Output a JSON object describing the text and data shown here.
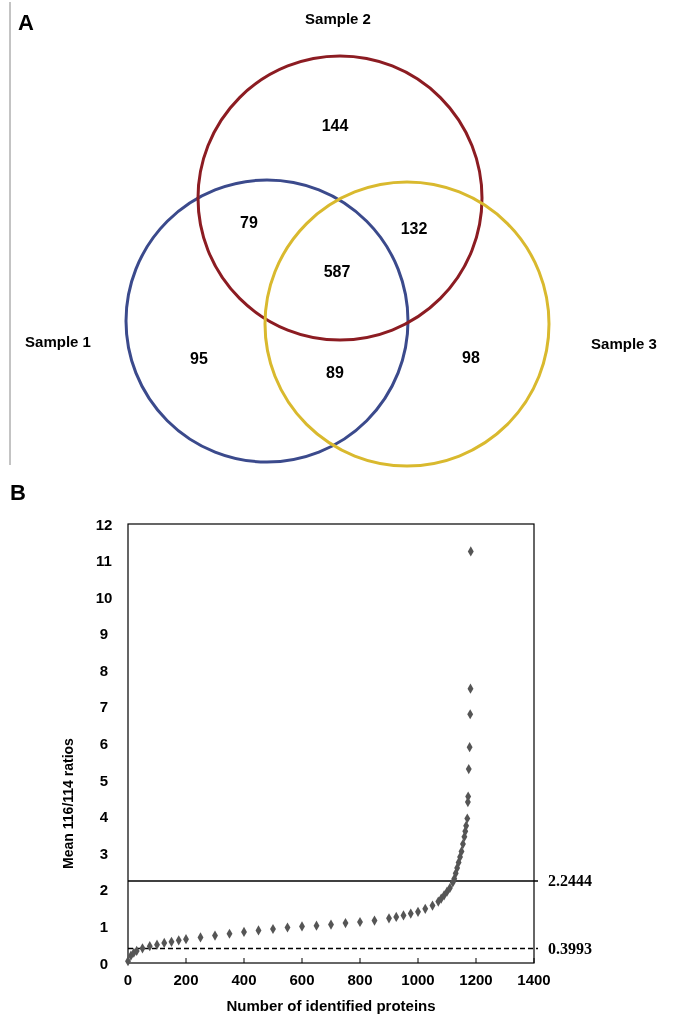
{
  "chart_data": [
    {
      "type": "other",
      "title": "A",
      "categories": [
        "Sample 1",
        "Sample 2",
        "Sample 3"
      ],
      "colors": [
        "#3b4a8c",
        "#8c1c22",
        "#d9b92e"
      ],
      "annotations": [
        "95",
        "144",
        "98",
        "79",
        "132",
        "89",
        "587"
      ]
    },
    {
      "type": "scatter",
      "title": "B",
      "xlabel": "Number of identified proteins",
      "ylabel": "Mean 116/114 ratios",
      "marker": "diamond",
      "xlim": [
        0,
        1400
      ],
      "xticks": [
        0,
        200,
        400,
        600,
        800,
        1000,
        1200,
        1400
      ],
      "ylim": [
        0,
        12
      ],
      "yticks": [
        0,
        1,
        2,
        3,
        4,
        5,
        6,
        7,
        8,
        9,
        10,
        11,
        12
      ],
      "series": [
        {
          "color": "#555555",
          "x": [
            0,
            10,
            20,
            30,
            50,
            75,
            100,
            125,
            150,
            175,
            200,
            250,
            300,
            350,
            400,
            450,
            500,
            550,
            600,
            650,
            700,
            750,
            800,
            850,
            900,
            925,
            950,
            975,
            1000,
            1025,
            1050,
            1070,
            1080,
            1090,
            1100,
            1110,
            1120,
            1125,
            1130,
            1135,
            1140,
            1145,
            1150,
            1155,
            1160,
            1163,
            1166,
            1170,
            1172,
            1173,
            1175,
            1178,
            1180,
            1181,
            1182
          ],
          "values": [
            0.05,
            0.2,
            0.28,
            0.33,
            0.4,
            0.46,
            0.5,
            0.55,
            0.58,
            0.62,
            0.65,
            0.7,
            0.75,
            0.8,
            0.85,
            0.89,
            0.93,
            0.97,
            1.0,
            1.02,
            1.05,
            1.09,
            1.12,
            1.16,
            1.22,
            1.26,
            1.3,
            1.35,
            1.4,
            1.48,
            1.57,
            1.68,
            1.76,
            1.85,
            1.95,
            2.05,
            2.2,
            2.3,
            2.45,
            2.6,
            2.75,
            2.9,
            3.05,
            3.25,
            3.45,
            3.6,
            3.75,
            3.95,
            4.4,
            4.55,
            5.3,
            5.9,
            6.8,
            7.5,
            11.25
          ]
        }
      ],
      "ref_lines": [
        {
          "axis": "y",
          "value": 2.2444,
          "label": "2.2444",
          "line_style": "solid",
          "color": "#000000"
        },
        {
          "axis": "y",
          "value": 0.3993,
          "label": "0.3993",
          "line_style": "dashed",
          "color": "#000000"
        }
      ]
    }
  ]
}
